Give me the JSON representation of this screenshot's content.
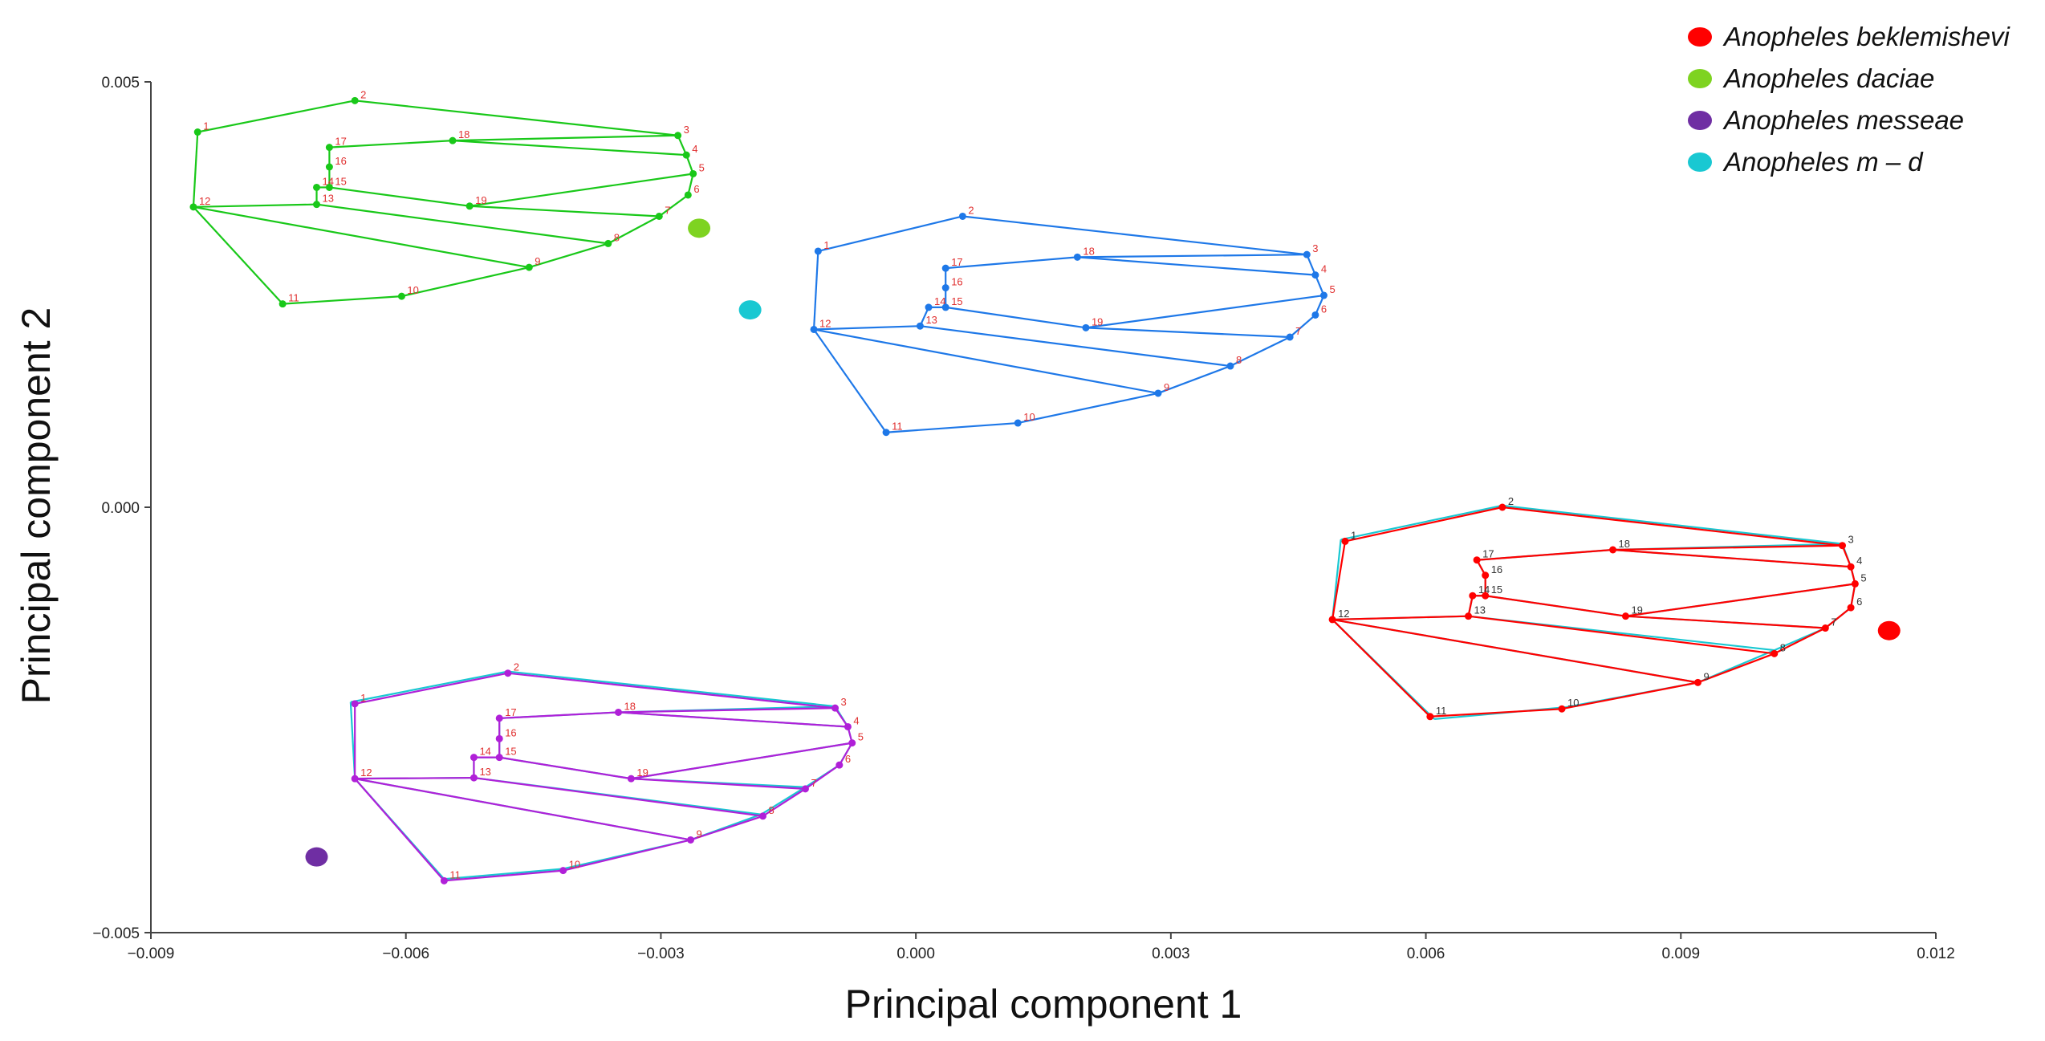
{
  "chart_data": {
    "type": "scatter",
    "xlabel": "Principal component 1",
    "ylabel": "Principal component 2",
    "xlim": [
      -0.009,
      0.012
    ],
    "ylim": [
      -0.005,
      0.005
    ],
    "x_ticks": [
      "−0.009",
      "−0.006",
      "−0.003",
      "0.000",
      "0.003",
      "0.006",
      "0.009",
      "0.012"
    ],
    "x_tick_values": [
      -0.009,
      -0.006,
      -0.003,
      0.0,
      0.003,
      0.006,
      0.009,
      0.012
    ],
    "y_ticks": [
      "0.005",
      "0.000",
      "−0.005"
    ],
    "y_tick_values": [
      0.005,
      0.0,
      -0.005
    ],
    "grid": false,
    "legend_position": "top-right",
    "landmark_labels": [
      "1",
      "2",
      "3",
      "4",
      "5",
      "6",
      "7",
      "8",
      "9",
      "10",
      "11",
      "12",
      "13",
      "14",
      "15",
      "16",
      "17",
      "18",
      "19"
    ],
    "wing_edges": [
      [
        1,
        2
      ],
      [
        2,
        3
      ],
      [
        3,
        4
      ],
      [
        4,
        5
      ],
      [
        5,
        6
      ],
      [
        6,
        7
      ],
      [
        7,
        8
      ],
      [
        8,
        9
      ],
      [
        9,
        10
      ],
      [
        10,
        11
      ],
      [
        11,
        12
      ],
      [
        12,
        1
      ],
      [
        12,
        13
      ],
      [
        13,
        14
      ],
      [
        14,
        15
      ],
      [
        15,
        16
      ],
      [
        16,
        17
      ],
      [
        17,
        18
      ],
      [
        18,
        3
      ],
      [
        18,
        4
      ],
      [
        15,
        19
      ],
      [
        19,
        7
      ],
      [
        19,
        5
      ],
      [
        13,
        8
      ],
      [
        12,
        9
      ]
    ],
    "series": [
      {
        "name": "Anopheles  beklemishevi",
        "color": "#ff0000",
        "label_color": "#333333",
        "centroid": [
          0.01145,
          -0.00145
        ],
        "wing": [
          [
            0.00505,
            -0.0004
          ],
          [
            0.0069,
            0.0
          ],
          [
            0.0109,
            -0.00045
          ],
          [
            0.011,
            -0.0007
          ],
          [
            0.01105,
            -0.0009
          ],
          [
            0.011,
            -0.00118
          ],
          [
            0.0107,
            -0.00142
          ],
          [
            0.0101,
            -0.00172
          ],
          [
            0.0092,
            -0.00206
          ],
          [
            0.0076,
            -0.00237
          ],
          [
            0.00605,
            -0.00246
          ],
          [
            0.0049,
            -0.00132
          ],
          [
            0.0065,
            -0.00128
          ],
          [
            0.00655,
            -0.00104
          ],
          [
            0.0067,
            -0.00104
          ],
          [
            0.0067,
            -0.0008
          ],
          [
            0.0066,
            -0.00062
          ],
          [
            0.0082,
            -0.0005
          ],
          [
            0.00835,
            -0.00128
          ]
        ],
        "overlay": {
          "name": "Anopheles  m – d",
          "color": "#19c8d2",
          "wing": [
            [
              0.005,
              -0.00038
            ],
            [
              0.0069,
              2e-05
            ],
            [
              0.0109,
              -0.00043
            ],
            [
              0.011,
              -0.0007
            ],
            [
              0.01105,
              -0.0009
            ],
            [
              0.011,
              -0.00118
            ],
            [
              0.0107,
              -0.00142
            ],
            [
              0.0101,
              -0.00168
            ],
            [
              0.0092,
              -0.00206
            ],
            [
              0.00765,
              -0.00235
            ],
            [
              0.0061,
              -0.00249
            ],
            [
              0.0049,
              -0.00132
            ],
            [
              0.0065,
              -0.00128
            ],
            [
              0.00655,
              -0.00104
            ],
            [
              0.0067,
              -0.00104
            ],
            [
              0.0067,
              -0.0008
            ],
            [
              0.0066,
              -0.00062
            ],
            [
              0.0082,
              -0.0005
            ],
            [
              0.00835,
              -0.00128
            ]
          ]
        }
      },
      {
        "name": "Anopheles  daciae",
        "color": "#19c819",
        "label_color": "#e03030",
        "centroid": [
          -0.00255,
          0.00328
        ],
        "wing": [
          [
            -0.00845,
            0.00441
          ],
          [
            -0.0066,
            0.00478
          ],
          [
            -0.0028,
            0.00437
          ],
          [
            -0.0027,
            0.00414
          ],
          [
            -0.00262,
            0.00392
          ],
          [
            -0.00268,
            0.00367
          ],
          [
            -0.00302,
            0.00342
          ],
          [
            -0.00362,
            0.0031
          ],
          [
            -0.00455,
            0.00282
          ],
          [
            -0.00605,
            0.00248
          ],
          [
            -0.00745,
            0.00239
          ],
          [
            -0.0085,
            0.00353
          ],
          [
            -0.00705,
            0.00356
          ],
          [
            -0.00705,
            0.00376
          ],
          [
            -0.0069,
            0.00376
          ],
          [
            -0.0069,
            0.004
          ],
          [
            -0.0069,
            0.00423
          ],
          [
            -0.00545,
            0.00431
          ],
          [
            -0.00525,
            0.00354
          ]
        ]
      },
      {
        "name": "Anopheles  m – d",
        "color": "#1e78e8",
        "label_color": "#e03030",
        "centroid": [
          -0.00195,
          0.00232
        ],
        "wing": [
          [
            -0.00115,
            0.00301
          ],
          [
            0.00055,
            0.00342
          ],
          [
            0.0046,
            0.00297
          ],
          [
            0.0047,
            0.00273
          ],
          [
            0.0048,
            0.00249
          ],
          [
            0.0047,
            0.00226
          ],
          [
            0.0044,
            0.002
          ],
          [
            0.0037,
            0.00166
          ],
          [
            0.00285,
            0.00134
          ],
          [
            0.0012,
            0.00099
          ],
          [
            -0.00035,
            0.00088
          ],
          [
            -0.0012,
            0.00209
          ],
          [
            5e-05,
            0.00213
          ],
          [
            0.00015,
            0.00235
          ],
          [
            0.00035,
            0.00235
          ],
          [
            0.00035,
            0.00258
          ],
          [
            0.00035,
            0.00281
          ],
          [
            0.0019,
            0.00294
          ],
          [
            0.002,
            0.00211
          ]
        ]
      },
      {
        "name": "Anopheles messeae",
        "color": "#6f2ea3",
        "label_color": "#e03030",
        "centroid": [
          -0.00705,
          -0.00411
        ],
        "wing": [
          [
            -0.0066,
            -0.00231
          ],
          [
            -0.0048,
            -0.00195
          ],
          [
            -0.00095,
            -0.00236
          ],
          [
            -0.0008,
            -0.00258
          ],
          [
            -0.00075,
            -0.00277
          ],
          [
            -0.0009,
            -0.00303
          ],
          [
            -0.0013,
            -0.00331
          ],
          [
            -0.0018,
            -0.00363
          ],
          [
            -0.00265,
            -0.00391
          ],
          [
            -0.00415,
            -0.00427
          ],
          [
            -0.00555,
            -0.00439
          ],
          [
            -0.0066,
            -0.00319
          ],
          [
            -0.0052,
            -0.00318
          ],
          [
            -0.0052,
            -0.00294
          ],
          [
            -0.0049,
            -0.00294
          ],
          [
            -0.0049,
            -0.00272
          ],
          [
            -0.0049,
            -0.00248
          ],
          [
            -0.0035,
            -0.00241
          ],
          [
            -0.00335,
            -0.00319
          ]
        ],
        "wing_color": "#b020d8",
        "overlay": {
          "name": "Anopheles  m – d",
          "color": "#19c8d2",
          "wing": [
            [
              -0.00665,
              -0.00229
            ],
            [
              -0.0048,
              -0.00193
            ],
            [
              -0.00095,
              -0.00234
            ],
            [
              -0.0008,
              -0.00258
            ],
            [
              -0.00075,
              -0.00277
            ],
            [
              -0.0009,
              -0.00303
            ],
            [
              -0.0013,
              -0.00329
            ],
            [
              -0.00182,
              -0.00361
            ],
            [
              -0.00265,
              -0.00391
            ],
            [
              -0.00415,
              -0.00425
            ],
            [
              -0.00555,
              -0.00437
            ],
            [
              -0.0066,
              -0.00319
            ],
            [
              -0.0052,
              -0.00318
            ],
            [
              -0.0052,
              -0.00294
            ],
            [
              -0.0049,
              -0.00294
            ],
            [
              -0.0049,
              -0.0027
            ],
            [
              -0.0049,
              -0.00248
            ],
            [
              -0.0035,
              -0.00241
            ],
            [
              -0.00335,
              -0.00319
            ]
          ]
        }
      }
    ],
    "legend": [
      {
        "name": "Anopheles  beklemishevi",
        "color": "#ff0000"
      },
      {
        "name": "Anopheles  daciae",
        "color": "#7ed321"
      },
      {
        "name": "Anopheles messeae",
        "color": "#6f2ea3"
      },
      {
        "name": "Anopheles  m – d",
        "color": "#19c8d2"
      }
    ]
  }
}
